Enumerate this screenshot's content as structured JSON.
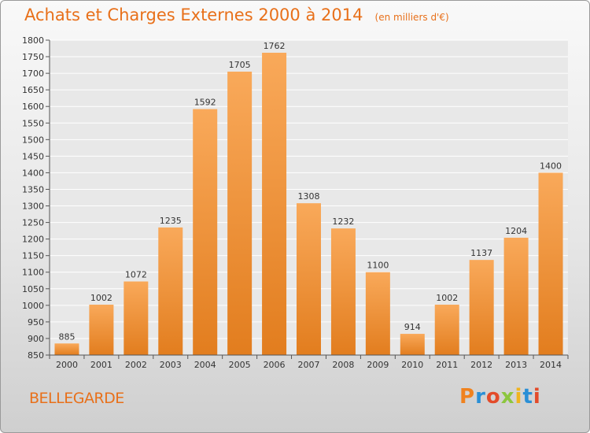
{
  "chart_data": {
    "type": "bar",
    "title": "Achats et Charges Externes 2000 à 2014",
    "subtitle": "(en milliers d'€)",
    "categories": [
      "2000",
      "2001",
      "2002",
      "2003",
      "2004",
      "2005",
      "2006",
      "2007",
      "2008",
      "2009",
      "2010",
      "2011",
      "2012",
      "2013",
      "2014"
    ],
    "values": [
      885,
      1002,
      1072,
      1235,
      1592,
      1705,
      1762,
      1308,
      1232,
      1100,
      914,
      1002,
      1137,
      1204,
      1400
    ],
    "ylim": [
      850,
      1800
    ],
    "yticks": [
      850,
      900,
      950,
      1000,
      1050,
      1100,
      1150,
      1200,
      1250,
      1300,
      1350,
      1400,
      1450,
      1500,
      1550,
      1600,
      1650,
      1700,
      1750,
      1800
    ],
    "xlabel": "",
    "ylabel": "",
    "grid": true,
    "legend": "none",
    "colors": {
      "bar_top": "#f9a95a",
      "bar_bottom": "#e27d1e",
      "title": "#e8701a",
      "grid": "#ffffff"
    }
  },
  "footer": {
    "town": "BELLEGARDE",
    "brand_letters": [
      {
        "char": "P",
        "color": "#f0821e"
      },
      {
        "char": "r",
        "color": "#2a8fd6"
      },
      {
        "char": "o",
        "color": "#e34b2a"
      },
      {
        "char": "x",
        "color": "#8cc63f"
      },
      {
        "char": "i",
        "color": "#f0b41e"
      },
      {
        "char": "t",
        "color": "#2a8fd6"
      },
      {
        "char": "i",
        "color": "#e34b2a"
      }
    ]
  }
}
